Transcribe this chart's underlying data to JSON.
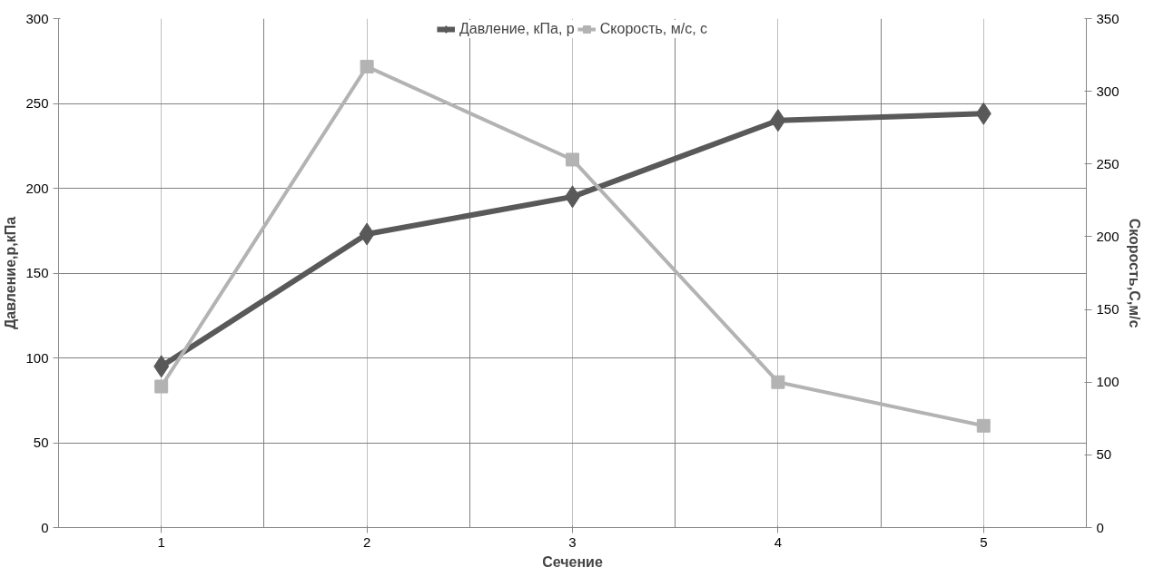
{
  "chart_data": {
    "type": "line",
    "xlabel": "Сечение",
    "ylabel": "Давление,p,кПа",
    "y2label": "Скорость,C,м/с",
    "categories": [
      "1",
      "2",
      "3",
      "4",
      "5"
    ],
    "series": [
      {
        "name": "Давление, кПа, p",
        "color": "#595959",
        "marker": "diamond",
        "values": [
          95,
          173,
          195,
          240,
          244
        ]
      },
      {
        "name": "Скорость, м/с, c",
        "color": "#b3b3b3",
        "marker": "square",
        "axis": "y2",
        "values": [
          97,
          317,
          253,
          100,
          70
        ]
      }
    ],
    "ylim": [
      0,
      300
    ],
    "yticks": [
      0,
      50,
      100,
      150,
      200,
      250,
      300
    ],
    "y2lim": [
      0,
      350
    ],
    "y2ticks": [
      0,
      50,
      100,
      150,
      200,
      250,
      300,
      350
    ],
    "grid": true,
    "legend": "top",
    "line_style": "solid"
  }
}
